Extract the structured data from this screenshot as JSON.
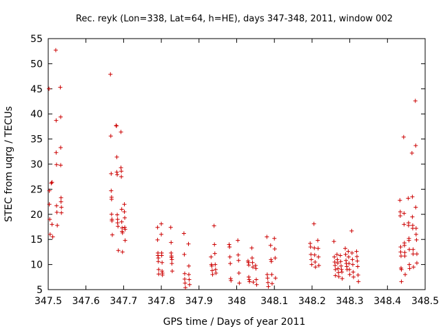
{
  "chart_data": {
    "type": "scatter",
    "title": "Rec. reyk (Lon=338, Lat=64, h=HE), days 347-348, 2011, window 002",
    "xlabel": "GPS time / Days of year 2011",
    "ylabel": "STEC from uqrg / TECUs",
    "xlim": [
      347.5,
      348.5
    ],
    "ylim": [
      5,
      55
    ],
    "xticks": [
      "347.5",
      "347.6",
      "347.7",
      "347.8",
      "347.9",
      "348",
      "348.1",
      "348.2",
      "348.3",
      "348.4",
      "348.5"
    ],
    "yticks": [
      "5",
      "10",
      "15",
      "20",
      "25",
      "30",
      "35",
      "40",
      "45",
      "50",
      "55"
    ],
    "grid": false,
    "legend": "none",
    "marker": "plus",
    "color": "#cc0000",
    "points": [
      [
        347.502,
        45.0
      ],
      [
        347.503,
        24.7
      ],
      [
        347.503,
        22.0
      ],
      [
        347.504,
        19.0
      ],
      [
        347.505,
        16.0
      ],
      [
        347.508,
        26.2
      ],
      [
        347.51,
        26.4
      ],
      [
        347.51,
        18.0
      ],
      [
        347.512,
        15.5
      ],
      [
        347.52,
        52.7
      ],
      [
        347.521,
        38.7
      ],
      [
        347.521,
        32.3
      ],
      [
        347.522,
        29.9
      ],
      [
        347.522,
        21.7
      ],
      [
        347.523,
        20.4
      ],
      [
        347.524,
        17.8
      ],
      [
        347.532,
        45.3
      ],
      [
        347.533,
        39.4
      ],
      [
        347.533,
        33.3
      ],
      [
        347.533,
        29.8
      ],
      [
        347.534,
        23.3
      ],
      [
        347.534,
        22.5
      ],
      [
        347.535,
        21.4
      ],
      [
        347.535,
        20.3
      ],
      [
        347.665,
        47.9
      ],
      [
        347.666,
        35.6
      ],
      [
        347.667,
        28.1
      ],
      [
        347.667,
        24.7
      ],
      [
        347.668,
        23.4
      ],
      [
        347.668,
        23.0
      ],
      [
        347.668,
        20.0
      ],
      [
        347.669,
        19.0
      ],
      [
        347.669,
        18.7
      ],
      [
        347.67,
        15.9
      ],
      [
        347.68,
        37.7
      ],
      [
        347.681,
        37.6
      ],
      [
        347.682,
        31.4
      ],
      [
        347.682,
        28.4
      ],
      [
        347.683,
        27.9
      ],
      [
        347.683,
        19.9
      ],
      [
        347.684,
        19.0
      ],
      [
        347.684,
        18.3
      ],
      [
        347.685,
        17.6
      ],
      [
        347.686,
        12.8
      ],
      [
        347.693,
        36.4
      ],
      [
        347.693,
        29.3
      ],
      [
        347.694,
        28.6
      ],
      [
        347.694,
        27.5
      ],
      [
        347.695,
        21.0
      ],
      [
        347.695,
        18.5
      ],
      [
        347.696,
        17.3
      ],
      [
        347.696,
        16.6
      ],
      [
        347.697,
        16.3
      ],
      [
        347.697,
        12.5
      ],
      [
        347.702,
        22.0
      ],
      [
        347.702,
        20.5
      ],
      [
        347.703,
        19.3
      ],
      [
        347.703,
        17.4
      ],
      [
        347.704,
        17.0
      ],
      [
        347.704,
        14.8
      ],
      [
        347.79,
        17.4
      ],
      [
        347.79,
        14.9
      ],
      [
        347.791,
        12.3
      ],
      [
        347.791,
        11.8
      ],
      [
        347.792,
        11.3
      ],
      [
        347.792,
        10.6
      ],
      [
        347.793,
        9.0
      ],
      [
        347.793,
        8.1
      ],
      [
        347.8,
        18.1
      ],
      [
        347.8,
        16.0
      ],
      [
        347.801,
        12.3
      ],
      [
        347.801,
        11.8
      ],
      [
        347.802,
        10.4
      ],
      [
        347.802,
        8.7
      ],
      [
        347.803,
        8.3
      ],
      [
        347.803,
        7.9
      ],
      [
        347.825,
        17.4
      ],
      [
        347.826,
        14.4
      ],
      [
        347.826,
        12.3
      ],
      [
        347.827,
        11.7
      ],
      [
        347.827,
        11.4
      ],
      [
        347.828,
        11.0
      ],
      [
        347.828,
        10.2
      ],
      [
        347.829,
        8.7
      ],
      [
        347.86,
        16.2
      ],
      [
        347.861,
        12.0
      ],
      [
        347.862,
        8.2
      ],
      [
        347.862,
        7.1
      ],
      [
        347.863,
        6.3
      ],
      [
        347.864,
        5.4
      ],
      [
        347.872,
        14.1
      ],
      [
        347.873,
        9.7
      ],
      [
        347.873,
        8.0
      ],
      [
        347.874,
        7.0
      ],
      [
        347.875,
        6.0
      ],
      [
        347.932,
        11.5
      ],
      [
        347.933,
        10.0
      ],
      [
        347.934,
        9.7
      ],
      [
        347.935,
        8.8
      ],
      [
        347.936,
        8.0
      ],
      [
        347.94,
        17.7
      ],
      [
        347.941,
        14.0
      ],
      [
        347.942,
        12.2
      ],
      [
        347.943,
        10.0
      ],
      [
        347.944,
        9.0
      ],
      [
        347.945,
        8.3
      ],
      [
        347.98,
        14.0
      ],
      [
        347.981,
        13.5
      ],
      [
        347.982,
        11.5
      ],
      [
        347.983,
        10.2
      ],
      [
        347.984,
        7.2
      ],
      [
        347.985,
        6.8
      ],
      [
        348.003,
        14.8
      ],
      [
        348.004,
        11.9
      ],
      [
        348.005,
        10.8
      ],
      [
        348.006,
        8.3
      ],
      [
        348.007,
        6.3
      ],
      [
        348.03,
        10.7
      ],
      [
        348.031,
        10.4
      ],
      [
        348.032,
        9.9
      ],
      [
        348.032,
        7.5
      ],
      [
        348.033,
        7.0
      ],
      [
        348.034,
        6.6
      ],
      [
        348.04,
        13.3
      ],
      [
        348.041,
        11.3
      ],
      [
        348.042,
        10.4
      ],
      [
        348.043,
        9.5
      ],
      [
        348.044,
        6.5
      ],
      [
        348.05,
        9.8
      ],
      [
        348.051,
        9.2
      ],
      [
        348.052,
        7.0
      ],
      [
        348.053,
        6.0
      ],
      [
        348.08,
        15.5
      ],
      [
        348.081,
        8.0
      ],
      [
        348.082,
        7.3
      ],
      [
        348.083,
        6.4
      ],
      [
        348.084,
        5.6
      ],
      [
        348.09,
        13.8
      ],
      [
        348.091,
        11.0
      ],
      [
        348.092,
        10.6
      ],
      [
        348.093,
        8.0
      ],
      [
        348.094,
        6.2
      ],
      [
        348.1,
        15.2
      ],
      [
        348.101,
        13.1
      ],
      [
        348.102,
        11.3
      ],
      [
        348.103,
        7.3
      ],
      [
        348.195,
        14.2
      ],
      [
        348.196,
        13.5
      ],
      [
        348.197,
        12.0
      ],
      [
        348.198,
        11.0
      ],
      [
        348.199,
        10.0
      ],
      [
        348.205,
        18.1
      ],
      [
        348.206,
        13.3
      ],
      [
        348.207,
        11.9
      ],
      [
        348.208,
        10.5
      ],
      [
        348.209,
        9.5
      ],
      [
        348.215,
        14.8
      ],
      [
        348.216,
        13.2
      ],
      [
        348.217,
        11.5
      ],
      [
        348.218,
        9.8
      ],
      [
        348.258,
        14.6
      ],
      [
        348.259,
        11.5
      ],
      [
        348.26,
        10.5
      ],
      [
        348.261,
        9.8
      ],
      [
        348.262,
        9.0
      ],
      [
        348.262,
        7.8
      ],
      [
        348.266,
        12.0
      ],
      [
        348.267,
        11.0
      ],
      [
        348.268,
        10.3
      ],
      [
        348.269,
        9.2
      ],
      [
        348.27,
        8.4
      ],
      [
        348.271,
        7.6
      ],
      [
        348.275,
        11.8
      ],
      [
        348.276,
        10.6
      ],
      [
        348.277,
        9.7
      ],
      [
        348.278,
        9.0
      ],
      [
        348.279,
        8.5
      ],
      [
        348.28,
        7.2
      ],
      [
        348.288,
        13.2
      ],
      [
        348.289,
        12.0
      ],
      [
        348.29,
        10.8
      ],
      [
        348.291,
        10.2
      ],
      [
        348.292,
        9.6
      ],
      [
        348.293,
        9.0
      ],
      [
        348.296,
        12.6
      ],
      [
        348.297,
        11.5
      ],
      [
        348.298,
        10.2
      ],
      [
        348.299,
        9.0
      ],
      [
        348.3,
        8.0
      ],
      [
        348.305,
        16.7
      ],
      [
        348.306,
        12.3
      ],
      [
        348.307,
        11.0
      ],
      [
        348.308,
        10.0
      ],
      [
        348.309,
        8.5
      ],
      [
        348.31,
        7.5
      ],
      [
        348.318,
        12.6
      ],
      [
        348.319,
        11.6
      ],
      [
        348.32,
        10.7
      ],
      [
        348.321,
        9.6
      ],
      [
        348.322,
        7.9
      ],
      [
        348.323,
        6.6
      ],
      [
        348.433,
        22.8
      ],
      [
        348.434,
        20.5
      ],
      [
        348.434,
        19.7
      ],
      [
        348.435,
        13.5
      ],
      [
        348.435,
        12.5
      ],
      [
        348.436,
        11.7
      ],
      [
        348.436,
        9.3
      ],
      [
        348.437,
        9.0
      ],
      [
        348.437,
        6.6
      ],
      [
        348.443,
        35.4
      ],
      [
        348.444,
        20.2
      ],
      [
        348.444,
        18.0
      ],
      [
        348.445,
        14.3
      ],
      [
        348.445,
        13.8
      ],
      [
        348.446,
        12.4
      ],
      [
        348.446,
        11.7
      ],
      [
        348.447,
        8.0
      ],
      [
        348.455,
        23.2
      ],
      [
        348.456,
        18.3
      ],
      [
        348.456,
        17.8
      ],
      [
        348.457,
        15.2
      ],
      [
        348.457,
        14.8
      ],
      [
        348.458,
        13.0
      ],
      [
        348.458,
        10.0
      ],
      [
        348.459,
        9.2
      ],
      [
        348.465,
        32.2
      ],
      [
        348.466,
        23.5
      ],
      [
        348.466,
        19.5
      ],
      [
        348.467,
        17.8
      ],
      [
        348.467,
        17.2
      ],
      [
        348.468,
        13.0
      ],
      [
        348.468,
        12.1
      ],
      [
        348.469,
        9.5
      ],
      [
        348.474,
        42.6
      ],
      [
        348.475,
        33.7
      ],
      [
        348.475,
        21.4
      ],
      [
        348.476,
        17.2
      ],
      [
        348.476,
        16.0
      ],
      [
        348.477,
        14.9
      ],
      [
        348.478,
        12.1
      ],
      [
        348.478,
        10.3
      ]
    ]
  }
}
